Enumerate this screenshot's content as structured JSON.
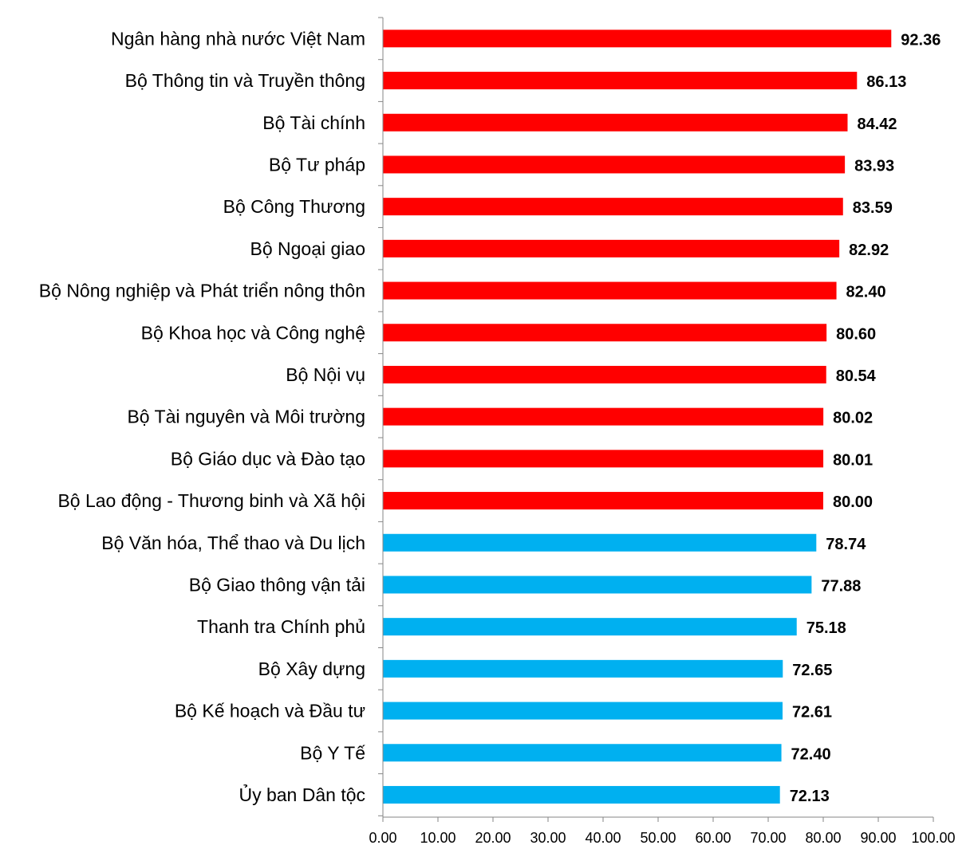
{
  "chart_data": {
    "type": "bar",
    "orientation": "horizontal",
    "title": "",
    "xlabel": "",
    "ylabel": "",
    "xlim": [
      0,
      100
    ],
    "x_ticks": [
      "0.00",
      "10.00",
      "20.00",
      "30.00",
      "40.00",
      "50.00",
      "60.00",
      "70.00",
      "80.00",
      "90.00",
      "100.00"
    ],
    "grid": false,
    "legend": "none",
    "colors": {
      "high": "#ff0000",
      "low": "#00b0f0"
    },
    "categories": [
      "Ngân hàng nhà nước Việt Nam",
      "Bộ Thông tin và Truyền thông",
      "Bộ Tài chính",
      "Bộ Tư pháp",
      "Bộ Công Thương",
      "Bộ Ngoại giao",
      "Bộ Nông nghiệp và Phát triển nông thôn",
      "Bộ Khoa học và Công nghệ",
      "Bộ Nội vụ",
      "Bộ Tài nguyên và Môi trường",
      "Bộ Giáo dục và Đào tạo",
      "Bộ Lao động - Thương binh và Xã hội",
      "Bộ Văn hóa, Thể thao và Du lịch",
      "Bộ Giao thông vận tải",
      "Thanh tra Chính phủ",
      "Bộ Xây dựng",
      "Bộ Kế hoạch và Đầu tư",
      "Bộ Y Tế",
      "Ủy ban Dân tộc"
    ],
    "values": [
      92.36,
      86.13,
      84.42,
      83.93,
      83.59,
      82.92,
      82.4,
      80.6,
      80.54,
      80.02,
      80.01,
      80.0,
      78.74,
      77.88,
      75.18,
      72.65,
      72.61,
      72.4,
      72.13
    ],
    "value_labels": [
      "92.36",
      "86.13",
      "84.42",
      "83.93",
      "83.59",
      "82.92",
      "82.40",
      "80.60",
      "80.54",
      "80.02",
      "80.01",
      "80.00",
      "78.74",
      "77.88",
      "75.18",
      "72.65",
      "72.61",
      "72.40",
      "72.13"
    ],
    "bar_color_group": [
      "high",
      "high",
      "high",
      "high",
      "high",
      "high",
      "high",
      "high",
      "high",
      "high",
      "high",
      "high",
      "low",
      "low",
      "low",
      "low",
      "low",
      "low",
      "low"
    ]
  }
}
